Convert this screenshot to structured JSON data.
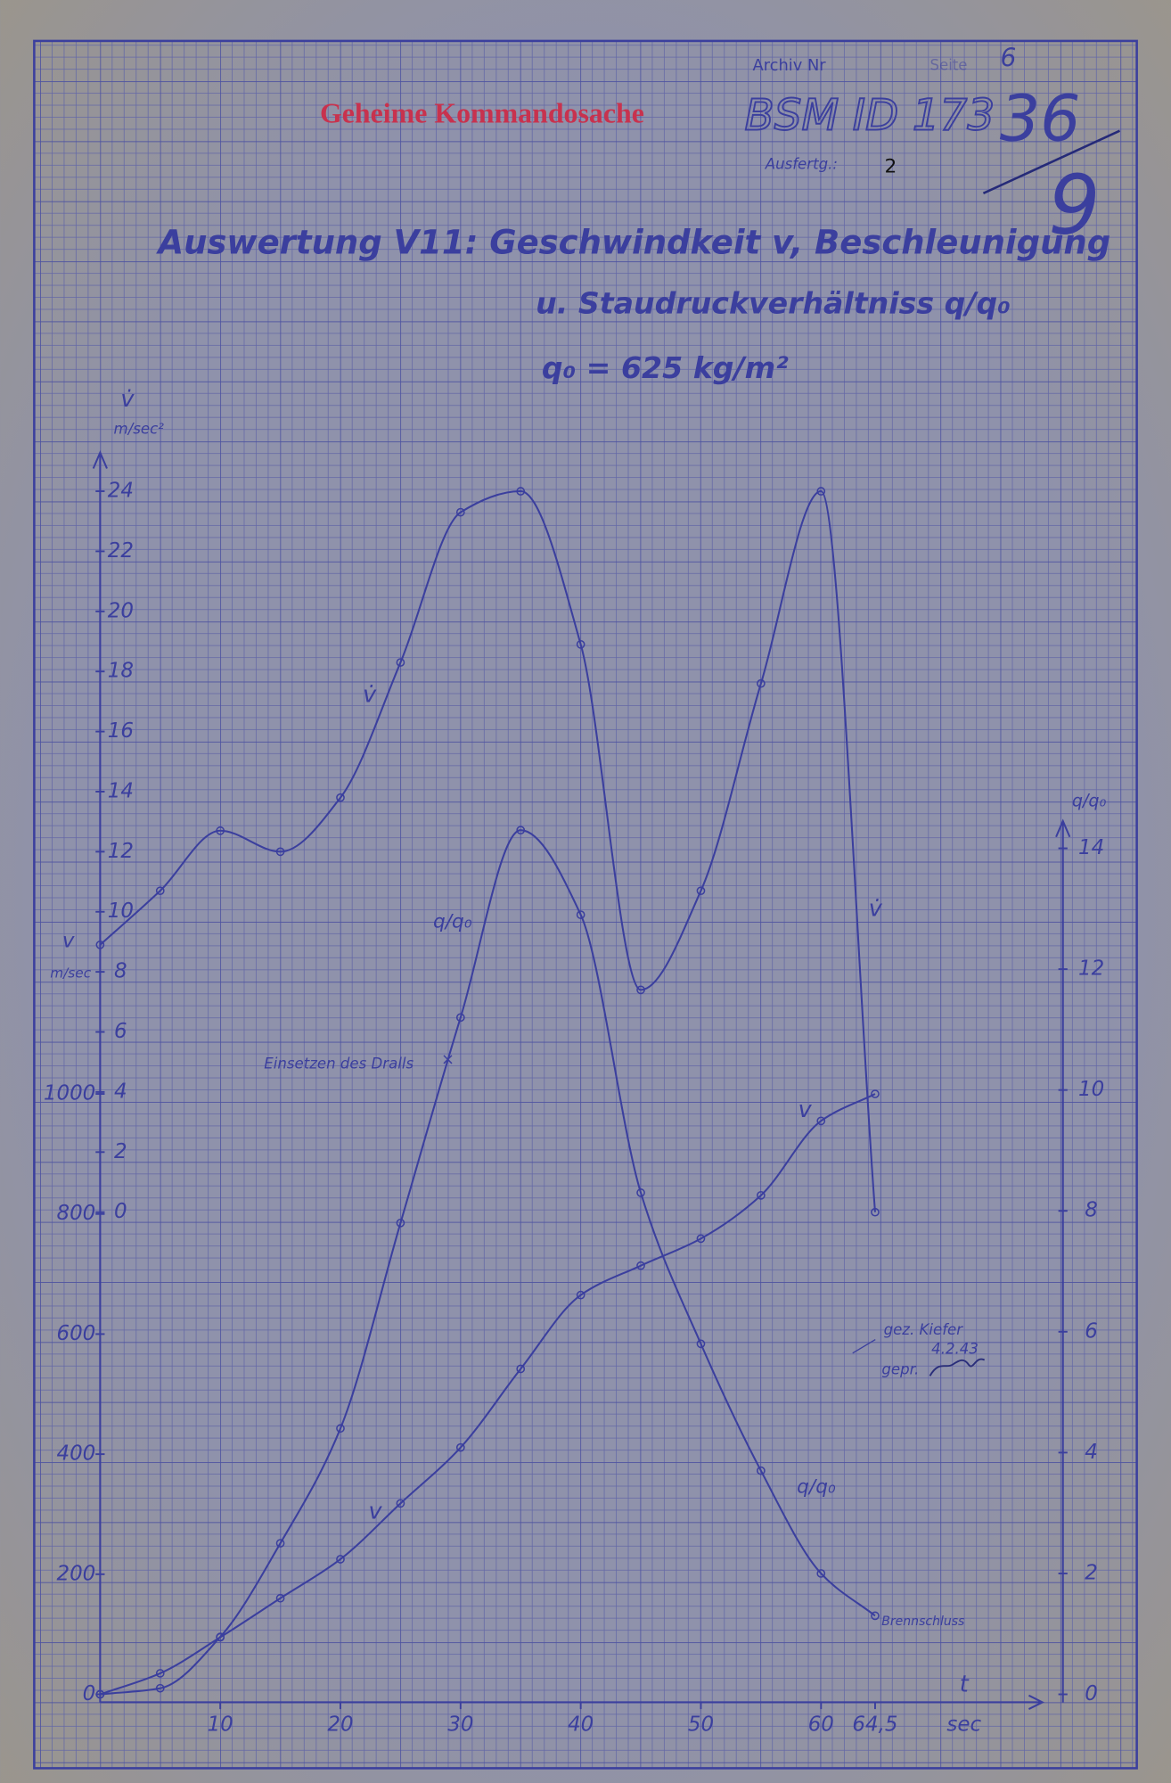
{
  "header": {
    "archive": "Archiv Nr",
    "page_label": "Seite",
    "page_number": "6",
    "stamp": "Geheime Kommandosache",
    "document_id": "BSM ID 173",
    "handwritten_number": "36",
    "handwritten_fraction": "9",
    "copy_label": "Ausfertg.:",
    "copy_number": "2"
  },
  "chart_data": {
    "type": "line",
    "title": "Auswertung V11: Geschwindkeit v, Beschleunigung",
    "subtitle": "u. Staudruckverhältniss q/q₀",
    "reference": "q₀ = 625 kg/m²",
    "x_label": "t",
    "x_unit": "sec",
    "y_label": "v̇",
    "y_unit": "m/sec²",
    "y3_label": "v",
    "y3_unit": "m/sec",
    "y2_label": "q/q₀",
    "x": [
      0,
      5,
      10,
      15,
      20,
      25,
      30,
      35,
      40,
      45,
      50,
      55,
      60,
      64.5
    ],
    "xlim": [
      0,
      80
    ],
    "xticks": [
      10,
      20,
      30,
      40,
      50,
      60,
      {
        "value": 64.5,
        "label": "64,5"
      }
    ],
    "ylim": [
      0,
      24
    ],
    "yticks": [
      0,
      2,
      4,
      6,
      8,
      10,
      12,
      14,
      16,
      18,
      20,
      22,
      24
    ],
    "y3lim": [
      0,
      1000
    ],
    "y3ticks": [
      0,
      200,
      400,
      600,
      800,
      1000
    ],
    "y2lim": [
      0,
      14
    ],
    "y2ticks": [
      0,
      2,
      4,
      6,
      8,
      10,
      12,
      14
    ],
    "series": [
      {
        "name": "v̇",
        "color": "#3b3f9e",
        "axis": "y",
        "values": [
          8.9,
          10.7,
          12.7,
          12.0,
          13.8,
          18.3,
          23.3,
          24.0,
          18.9,
          7.4,
          10.7,
          17.6,
          24.0,
          0
        ]
      },
      {
        "name": "v",
        "color": "#3b3f9e",
        "axis": "y3",
        "values": [
          0,
          35,
          95,
          160,
          225,
          318,
          411,
          542,
          665,
          714,
          759,
          831,
          955,
          1000
        ]
      },
      {
        "name": "q/q₀",
        "color": "#3b3f9e",
        "axis": "y2",
        "values": [
          0,
          0.1,
          0.95,
          2.5,
          4.4,
          7.8,
          11.2,
          14.3,
          12.9,
          8.3,
          5.8,
          3.7,
          2.0,
          1.3
        ]
      }
    ],
    "annotations": [
      "Einsetzen des Dralls",
      "gez. Kiefer",
      "4.2.43",
      "gepr.",
      "Brennschluss"
    ]
  }
}
